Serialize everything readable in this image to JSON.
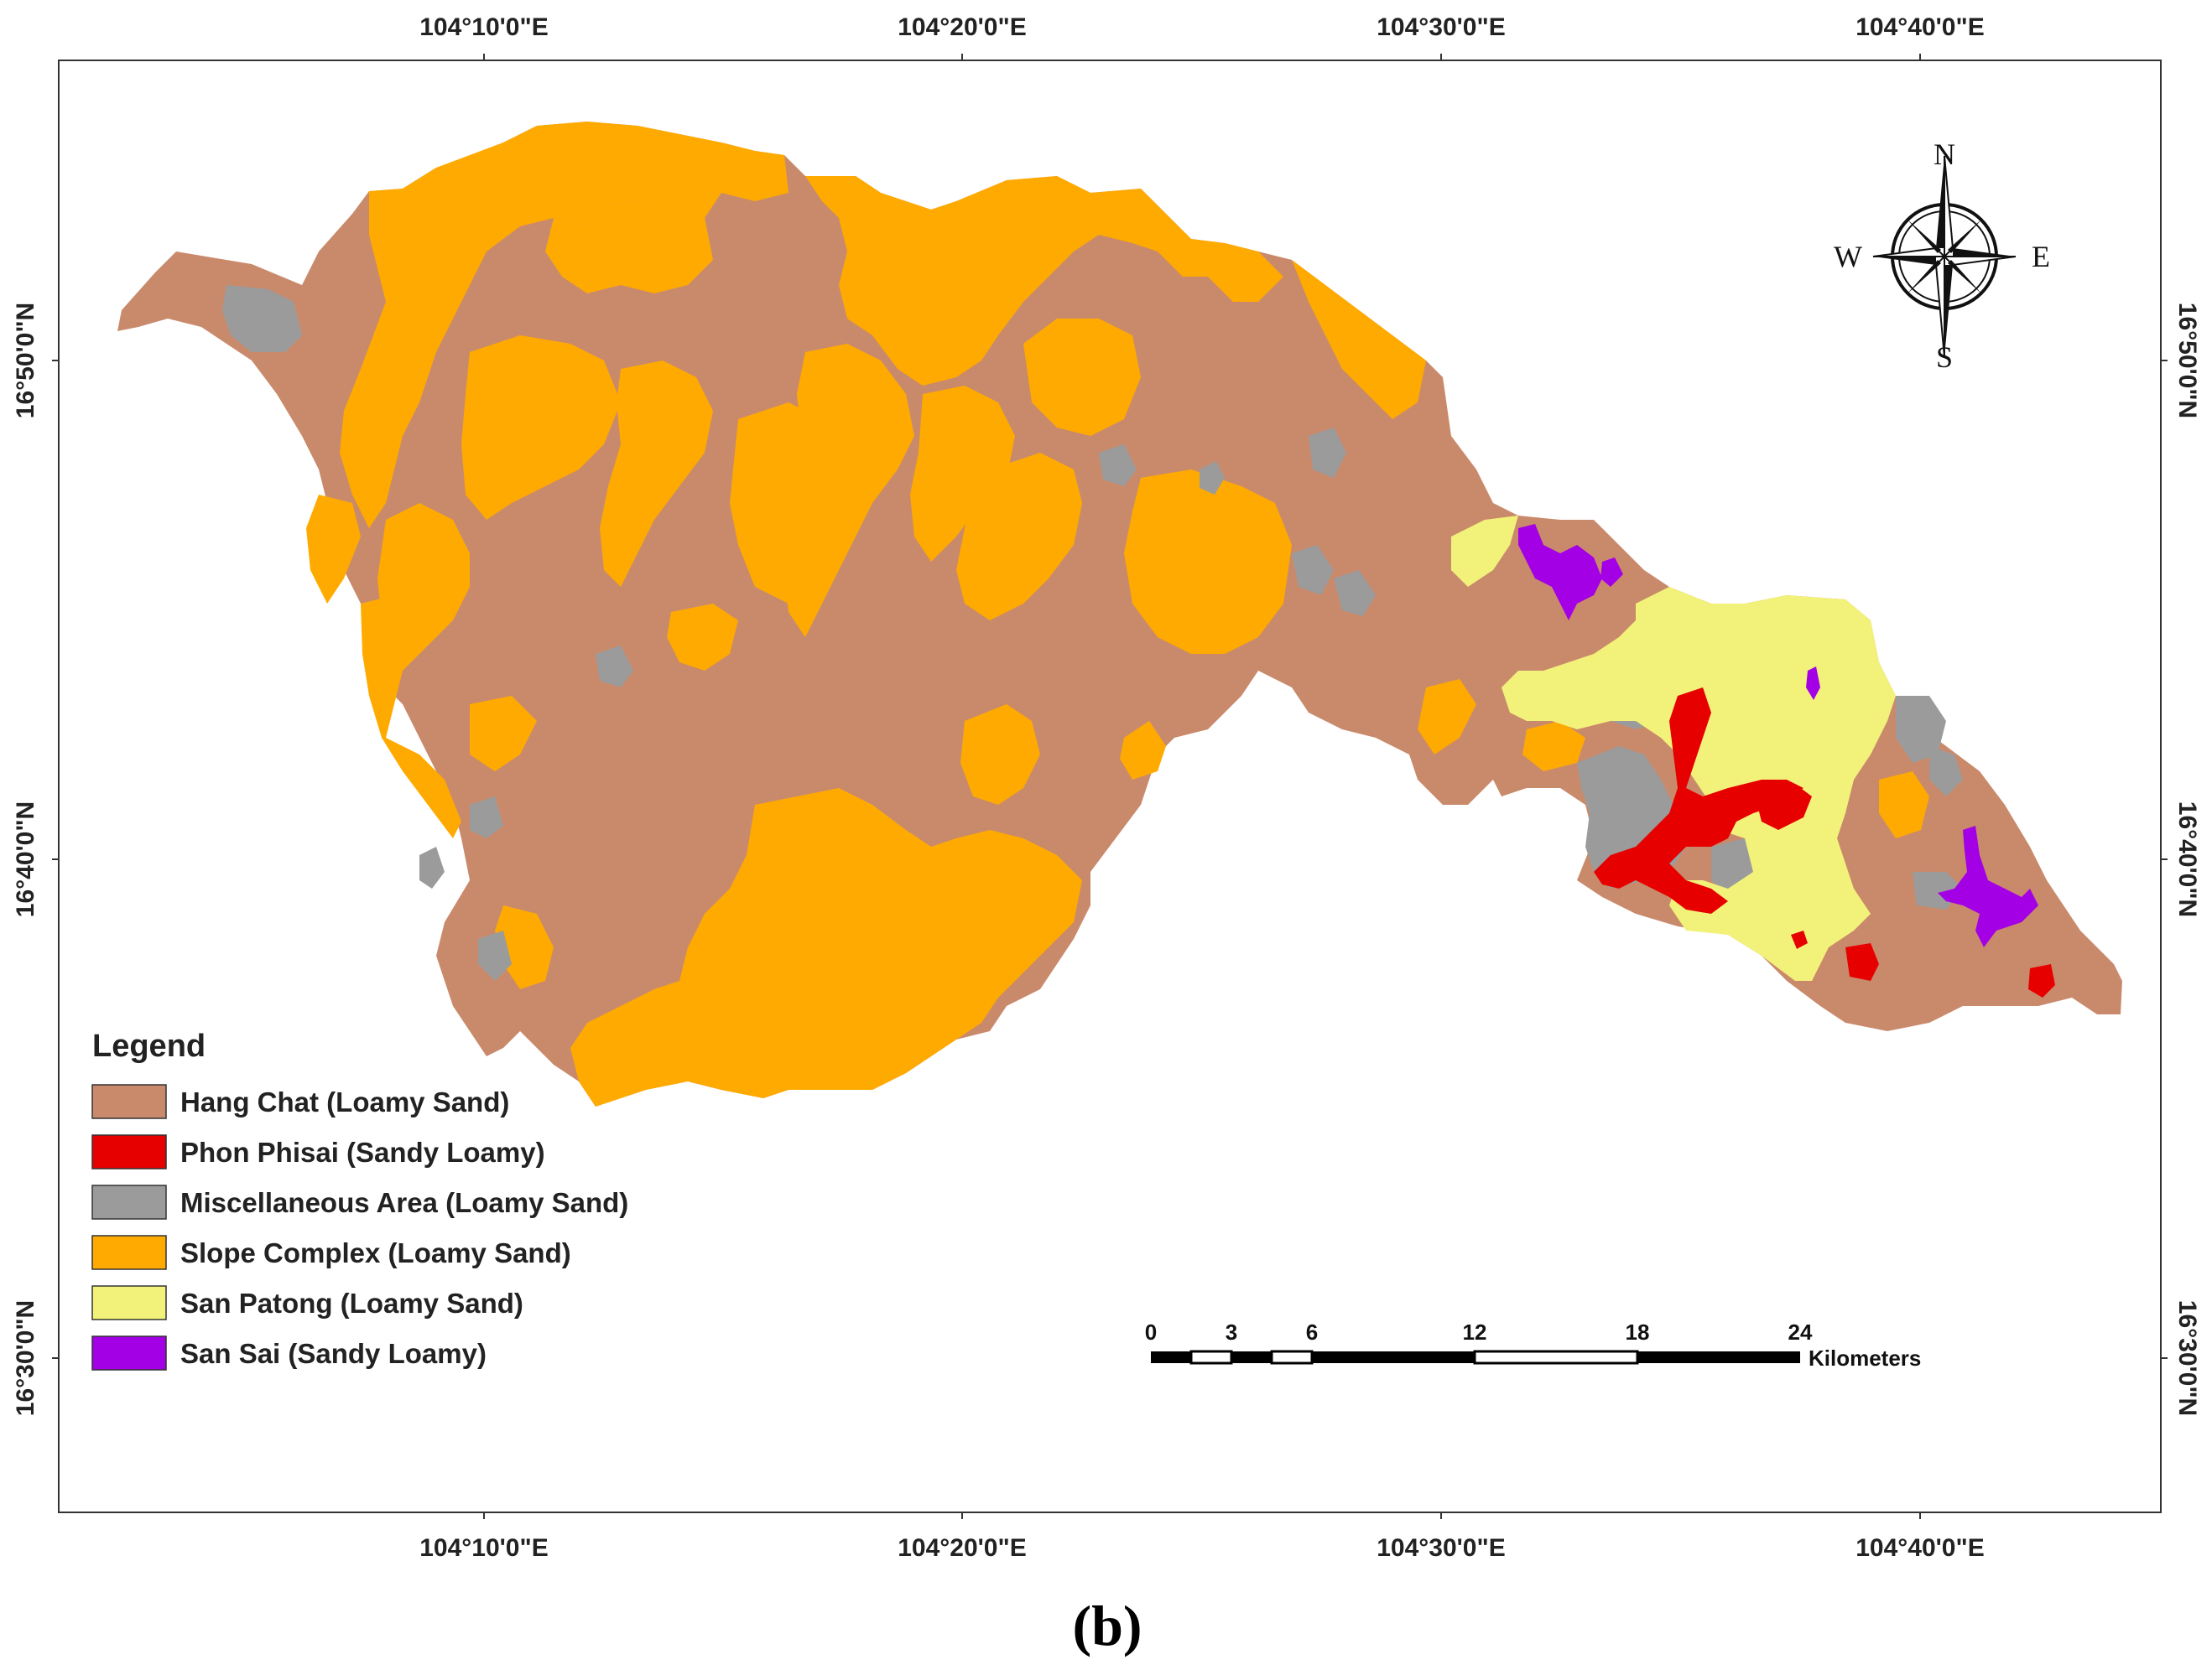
{
  "map": {
    "top_axis_labels": [
      "104°10'0\"E",
      "104°20'0\"E",
      "104°30'0\"E",
      "104°40'0\"E"
    ],
    "bottom_axis_labels": [
      "104°10'0\"E",
      "104°20'0\"E",
      "104°30'0\"E",
      "104°40'0\"E"
    ],
    "left_axis_labels": [
      "16°50'0\"N",
      "16°40'0\"N",
      "16°30'0\"N"
    ],
    "right_axis_labels": [
      "16°50'0\"N",
      "16°40'0\"N",
      "16°30'0\"N"
    ]
  },
  "legend": {
    "title": "Legend",
    "items": [
      {
        "label": "Hang Chat (Loamy Sand)",
        "color": "#c98a6c"
      },
      {
        "label": "Phon Phisai (Sandy Loamy)",
        "color": "#e60000"
      },
      {
        "label": "Miscellaneous Area (Loamy Sand)",
        "color": "#9b9b9b"
      },
      {
        "label": "Slope Complex (Loamy Sand)",
        "color": "#ffaa00"
      },
      {
        "label": "San Patong (Loamy Sand)",
        "color": "#f2f27a"
      },
      {
        "label": "San Sai (Sandy Loamy)",
        "color": "#a300e6"
      }
    ]
  },
  "scale_bar": {
    "ticks": [
      "0",
      "3",
      "6",
      "12",
      "18",
      "24"
    ],
    "unit": "Kilometers"
  },
  "compass": {
    "north": "N",
    "south": "S",
    "east": "E",
    "west": "W"
  },
  "panel_label": "(b)"
}
